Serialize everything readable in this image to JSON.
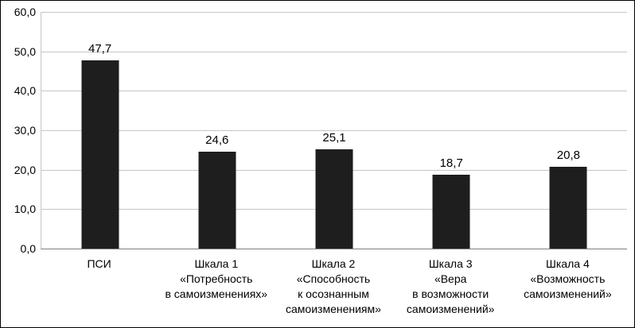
{
  "chart_data": {
    "type": "bar",
    "title": "",
    "xlabel": "",
    "ylabel": "",
    "categories": [
      "ПСИ",
      "Шкала 1\n«Потребность\nв самоизменениях»",
      "Шкала 2\n«Способность\nк осознанным\nсамоизменениям»",
      "Шкала 3\n«Вера\nв возможности\nсамоизменений»",
      "Шкала 4\n«Возможность\nсамоизменений»"
    ],
    "values": [
      47.7,
      24.6,
      25.1,
      18.7,
      20.8
    ],
    "value_labels": [
      "47,7",
      "24,6",
      "25,1",
      "18,7",
      "20,8"
    ],
    "ylim": [
      0,
      60
    ],
    "y_tick_values": [
      0,
      10,
      20,
      30,
      40,
      50,
      60
    ],
    "y_tick_labels": [
      "0,0",
      "10,0",
      "20,0",
      "30,0",
      "40,0",
      "50,0",
      "60,0"
    ],
    "grid": true,
    "legend": false,
    "colors": {
      "bar": "#1e1e1e",
      "gridline": "#c6c6c6",
      "axis": "#7f7f7f",
      "frame_border": "#000000",
      "background": "#ffffff"
    }
  }
}
